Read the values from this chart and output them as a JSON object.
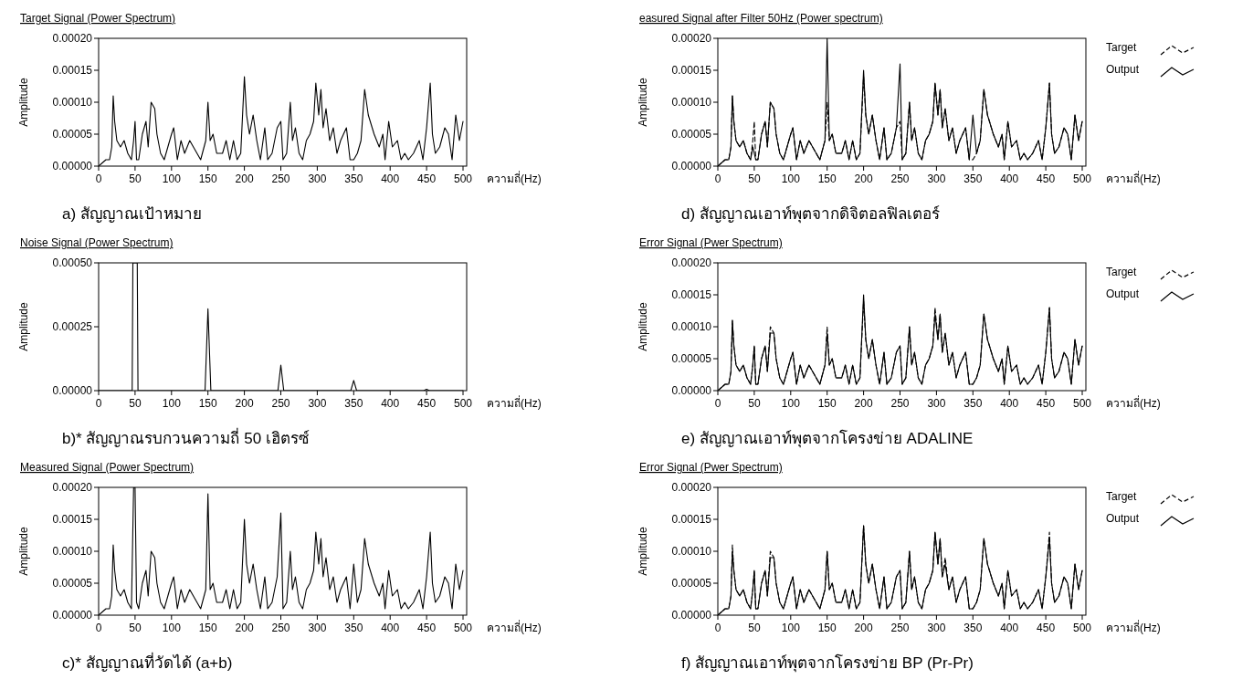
{
  "chart_data": [
    {
      "type": "line",
      "title": "Target Signal (Power Spectrum)",
      "xlabel": "ความถี่(Hz)",
      "ylabel": "Amplitude",
      "annotations": [
        "a) สัญญาณเป้าหมาย"
      ],
      "xlim": [
        0,
        505
      ],
      "xticks": [
        0,
        50,
        100,
        150,
        200,
        250,
        300,
        350,
        400,
        450,
        500
      ],
      "ylim": [
        0,
        0.0002
      ],
      "yticks": [
        {
          "value": 0,
          "label": "0.00000"
        },
        {
          "value": 5e-05,
          "label": "0.00005"
        },
        {
          "value": 0.0001,
          "label": "0.00010"
        },
        {
          "value": 0.00015,
          "label": "0.00015"
        },
        {
          "value": 0.0002,
          "label": "0.00020"
        }
      ],
      "x": [
        0,
        5,
        10,
        15,
        18,
        20,
        22,
        25,
        30,
        35,
        40,
        45,
        48,
        50,
        52,
        55,
        60,
        65,
        68,
        72,
        77,
        80,
        85,
        90,
        95,
        100,
        103,
        108,
        113,
        118,
        125,
        130,
        140,
        147,
        150,
        153,
        157,
        162,
        170,
        175,
        180,
        185,
        190,
        195,
        200,
        203,
        207,
        212,
        217,
        222,
        228,
        232,
        238,
        245,
        250,
        253,
        258,
        263,
        266,
        270,
        275,
        280,
        285,
        290,
        295,
        298,
        302,
        305,
        308,
        312,
        317,
        322,
        327,
        332,
        340,
        345,
        350,
        355,
        360,
        365,
        370,
        378,
        385,
        390,
        393,
        398,
        403,
        410,
        415,
        420,
        425,
        432,
        440,
        445,
        450,
        455,
        458,
        462,
        468,
        475,
        480,
        485,
        490,
        495,
        500
      ],
      "series": [
        {
          "color": "#000000",
          "line_style": "solid",
          "values": [
            0,
            5e-06,
            1e-05,
            1e-05,
            3e-05,
            0.00011,
            7e-05,
            4e-05,
            3e-05,
            4e-05,
            2e-05,
            1e-05,
            4e-05,
            7e-05,
            1e-05,
            1e-05,
            5e-05,
            7e-05,
            3e-05,
            0.0001,
            9e-05,
            5e-05,
            2e-05,
            1e-05,
            3e-05,
            5e-05,
            6e-05,
            1e-05,
            4e-05,
            2e-05,
            4e-05,
            3e-05,
            1e-05,
            4e-05,
            0.0001,
            4e-05,
            5e-05,
            2e-05,
            2e-05,
            4e-05,
            1e-05,
            4e-05,
            1e-05,
            2e-05,
            0.00014,
            8e-05,
            5e-05,
            8e-05,
            4e-05,
            1e-05,
            6e-05,
            1e-05,
            2e-05,
            6e-05,
            7e-05,
            1e-05,
            2e-05,
            0.0001,
            4e-05,
            6e-05,
            2e-05,
            1e-05,
            4e-05,
            5e-05,
            7e-05,
            0.00013,
            8e-05,
            0.00012,
            6e-05,
            9e-05,
            4e-05,
            6e-05,
            2e-05,
            4e-05,
            6e-05,
            1e-05,
            1e-05,
            2e-05,
            4e-05,
            0.00012,
            8e-05,
            5e-05,
            3e-05,
            5e-05,
            1e-05,
            7e-05,
            3e-05,
            4e-05,
            1e-05,
            2e-05,
            1e-05,
            2e-05,
            4e-05,
            1e-05,
            6e-05,
            0.00013,
            5e-05,
            2e-05,
            3e-05,
            6e-05,
            5e-05,
            1e-05,
            8e-05,
            4e-05,
            7e-05
          ]
        }
      ]
    },
    {
      "type": "line",
      "title": "Noise Signal (Power Spectrum)",
      "xlabel": "ความถี่(Hz)",
      "ylabel": "Amplitude",
      "annotations": [
        "b)* สัญญาณรบกวนความถี่ 50 เฮิตรซ์"
      ],
      "xlim": [
        0,
        505
      ],
      "xticks": [
        0,
        50,
        100,
        150,
        200,
        250,
        300,
        350,
        400,
        450,
        500
      ],
      "ylim": [
        0,
        0.0005
      ],
      "yticks": [
        {
          "value": 0,
          "label": "0.00000"
        },
        {
          "value": 0.00025,
          "label": "0.00025"
        },
        {
          "value": 0.0005,
          "label": "0.00050"
        }
      ],
      "x": [
        0,
        46,
        47,
        53,
        54,
        146,
        150,
        154,
        246,
        250,
        254,
        346,
        350,
        354,
        446,
        450,
        454,
        500
      ],
      "series": [
        {
          "color": "#000000",
          "line_style": "solid",
          "values": [
            0,
            0,
            0.0005,
            0.0005,
            0,
            0,
            0.00032,
            0,
            0,
            0.0001,
            0,
            0,
            4e-05,
            0,
            0,
            5e-06,
            0,
            0
          ]
        }
      ]
    },
    {
      "type": "line",
      "title": "Measured Signal (Power Spectrum)",
      "xlabel": "ความถี่(Hz)",
      "ylabel": "Amplitude",
      "annotations": [
        "c)* สัญญาณที่วัดได้ (a+b)"
      ],
      "xlim": [
        0,
        505
      ],
      "xticks": [
        0,
        50,
        100,
        150,
        200,
        250,
        300,
        350,
        400,
        450,
        500
      ],
      "ylim": [
        0,
        0.0002
      ],
      "yticks": [
        {
          "value": 0,
          "label": "0.00000"
        },
        {
          "value": 5e-05,
          "label": "0.00005"
        },
        {
          "value": 0.0001,
          "label": "0.00010"
        },
        {
          "value": 0.00015,
          "label": "0.00015"
        },
        {
          "value": 0.0002,
          "label": "0.00020"
        }
      ],
      "x": [
        0,
        5,
        10,
        15,
        18,
        20,
        22,
        25,
        30,
        35,
        40,
        45,
        48,
        50,
        52,
        55,
        60,
        65,
        68,
        72,
        77,
        80,
        85,
        90,
        95,
        100,
        103,
        108,
        113,
        118,
        125,
        130,
        140,
        147,
        150,
        153,
        157,
        162,
        170,
        175,
        180,
        185,
        190,
        195,
        200,
        203,
        207,
        212,
        217,
        222,
        228,
        232,
        238,
        245,
        250,
        253,
        258,
        263,
        266,
        270,
        275,
        280,
        285,
        290,
        295,
        298,
        302,
        305,
        308,
        312,
        317,
        322,
        327,
        332,
        340,
        345,
        350,
        355,
        360,
        365,
        370,
        378,
        385,
        390,
        393,
        398,
        403,
        410,
        415,
        420,
        425,
        432,
        440,
        445,
        450,
        455,
        458,
        462,
        468,
        475,
        480,
        485,
        490,
        495,
        500
      ],
      "series": [
        {
          "color": "#000000",
          "line_style": "solid",
          "values": [
            0,
            5e-06,
            1e-05,
            1e-05,
            3e-05,
            0.00011,
            7e-05,
            4e-05,
            3e-05,
            4e-05,
            2e-05,
            1e-05,
            0.0002,
            0.0002,
            2e-05,
            1e-05,
            5e-05,
            7e-05,
            3e-05,
            0.0001,
            9e-05,
            5e-05,
            2e-05,
            1e-05,
            3e-05,
            5e-05,
            6e-05,
            1e-05,
            4e-05,
            2e-05,
            4e-05,
            3e-05,
            1e-05,
            4e-05,
            0.00019,
            4e-05,
            5e-05,
            2e-05,
            2e-05,
            4e-05,
            1e-05,
            4e-05,
            1e-05,
            2e-05,
            0.00015,
            8e-05,
            5e-05,
            8e-05,
            4e-05,
            1e-05,
            6e-05,
            1e-05,
            2e-05,
            6e-05,
            0.00016,
            1e-05,
            2e-05,
            0.0001,
            4e-05,
            6e-05,
            2e-05,
            1e-05,
            4e-05,
            5e-05,
            7e-05,
            0.00013,
            8e-05,
            0.00012,
            6e-05,
            9e-05,
            4e-05,
            6e-05,
            2e-05,
            4e-05,
            6e-05,
            1e-05,
            8e-05,
            2e-05,
            4e-05,
            0.00012,
            8e-05,
            5e-05,
            3e-05,
            5e-05,
            1e-05,
            7e-05,
            3e-05,
            4e-05,
            1e-05,
            2e-05,
            1e-05,
            2e-05,
            4e-05,
            1e-05,
            6e-05,
            0.00013,
            5e-05,
            2e-05,
            3e-05,
            6e-05,
            5e-05,
            1e-05,
            8e-05,
            4e-05,
            7e-05
          ]
        }
      ]
    },
    {
      "type": "line",
      "title": "easured Signal after Filter 50Hz (Power spectrum)",
      "xlabel": "ความถี่(Hz)",
      "ylabel": "Amplitude",
      "annotations": [
        "d) สัญญาณเอาท์พุตจากดิจิตอลฟิลเตอร์"
      ],
      "legend": "right",
      "xlim": [
        0,
        505
      ],
      "xticks": [
        0,
        50,
        100,
        150,
        200,
        250,
        300,
        350,
        400,
        450,
        500
      ],
      "ylim": [
        0,
        0.0002
      ],
      "yticks": [
        {
          "value": 0,
          "label": "0.00000"
        },
        {
          "value": 5e-05,
          "label": "0.00005"
        },
        {
          "value": 0.0001,
          "label": "0.00010"
        },
        {
          "value": 0.00015,
          "label": "0.00015"
        },
        {
          "value": 0.0002,
          "label": "0.00020"
        }
      ],
      "x": [
        0,
        5,
        10,
        15,
        18,
        20,
        22,
        25,
        30,
        35,
        40,
        45,
        48,
        50,
        52,
        55,
        60,
        65,
        68,
        72,
        77,
        80,
        85,
        90,
        95,
        100,
        103,
        108,
        113,
        118,
        125,
        130,
        140,
        147,
        150,
        153,
        157,
        162,
        170,
        175,
        180,
        185,
        190,
        195,
        200,
        203,
        207,
        212,
        217,
        222,
        228,
        232,
        238,
        245,
        250,
        253,
        258,
        263,
        266,
        270,
        275,
        280,
        285,
        290,
        295,
        298,
        302,
        305,
        308,
        312,
        317,
        322,
        327,
        332,
        340,
        345,
        350,
        355,
        360,
        365,
        370,
        378,
        385,
        390,
        393,
        398,
        403,
        410,
        415,
        420,
        425,
        432,
        440,
        445,
        450,
        455,
        458,
        462,
        468,
        475,
        480,
        485,
        490,
        495,
        500
      ],
      "series": [
        {
          "name": "Target",
          "color": "#000000",
          "line_style": "dashed",
          "values": [
            0,
            5e-06,
            1e-05,
            1e-05,
            3e-05,
            0.00011,
            7e-05,
            4e-05,
            3e-05,
            4e-05,
            2e-05,
            1e-05,
            4e-05,
            7e-05,
            1e-05,
            1e-05,
            5e-05,
            7e-05,
            3e-05,
            0.0001,
            9e-05,
            5e-05,
            2e-05,
            1e-05,
            3e-05,
            5e-05,
            6e-05,
            1e-05,
            4e-05,
            2e-05,
            4e-05,
            3e-05,
            1e-05,
            4e-05,
            0.0001,
            4e-05,
            5e-05,
            2e-05,
            2e-05,
            4e-05,
            1e-05,
            4e-05,
            1e-05,
            2e-05,
            0.00014,
            8e-05,
            5e-05,
            8e-05,
            4e-05,
            1e-05,
            6e-05,
            1e-05,
            2e-05,
            6e-05,
            7e-05,
            1e-05,
            2e-05,
            0.0001,
            4e-05,
            6e-05,
            2e-05,
            1e-05,
            4e-05,
            5e-05,
            7e-05,
            0.00013,
            8e-05,
            0.00012,
            6e-05,
            9e-05,
            4e-05,
            6e-05,
            2e-05,
            4e-05,
            6e-05,
            1e-05,
            1e-05,
            2e-05,
            4e-05,
            0.00012,
            8e-05,
            5e-05,
            3e-05,
            5e-05,
            1e-05,
            7e-05,
            3e-05,
            4e-05,
            1e-05,
            2e-05,
            1e-05,
            2e-05,
            4e-05,
            1e-05,
            6e-05,
            0.00013,
            5e-05,
            2e-05,
            3e-05,
            6e-05,
            5e-05,
            1e-05,
            8e-05,
            4e-05,
            7e-05
          ]
        },
        {
          "name": "Output",
          "color": "#000000",
          "line_style": "solid",
          "values": [
            0,
            5e-06,
            1e-05,
            1e-05,
            3e-05,
            0.00011,
            7e-05,
            4e-05,
            3e-05,
            4e-05,
            2e-05,
            1e-05,
            3e-05,
            2e-05,
            1e-05,
            1e-05,
            5e-05,
            7e-05,
            3e-05,
            0.0001,
            9e-05,
            5e-05,
            2e-05,
            1e-05,
            3e-05,
            5e-05,
            6e-05,
            1e-05,
            4e-05,
            2e-05,
            4e-05,
            3e-05,
            1e-05,
            4e-05,
            0.0002,
            4e-05,
            5e-05,
            2e-05,
            2e-05,
            4e-05,
            1e-05,
            4e-05,
            1e-05,
            2e-05,
            0.00015,
            8e-05,
            5e-05,
            8e-05,
            4e-05,
            1e-05,
            6e-05,
            1e-05,
            2e-05,
            6e-05,
            0.00016,
            1e-05,
            2e-05,
            0.0001,
            4e-05,
            6e-05,
            2e-05,
            1e-05,
            4e-05,
            5e-05,
            7e-05,
            0.00013,
            8e-05,
            0.00012,
            6e-05,
            9e-05,
            4e-05,
            6e-05,
            2e-05,
            4e-05,
            6e-05,
            1e-05,
            8e-05,
            2e-05,
            4e-05,
            0.00012,
            8e-05,
            5e-05,
            3e-05,
            5e-05,
            1e-05,
            7e-05,
            3e-05,
            4e-05,
            1e-05,
            2e-05,
            1e-05,
            2e-05,
            4e-05,
            1e-05,
            6e-05,
            0.00013,
            5e-05,
            2e-05,
            3e-05,
            6e-05,
            5e-05,
            1e-05,
            8e-05,
            4e-05,
            7e-05
          ]
        }
      ]
    },
    {
      "type": "line",
      "title": "Error Signal (Pwer Spectrum)",
      "xlabel": "ความถี่(Hz)",
      "ylabel": "Amplitude",
      "annotations": [
        "e) สัญญาณเอาท์พุตจากโครงข่าย ADALINE"
      ],
      "legend": "right",
      "xlim": [
        0,
        505
      ],
      "xticks": [
        0,
        50,
        100,
        150,
        200,
        250,
        300,
        350,
        400,
        450,
        500
      ],
      "ylim": [
        0,
        0.0002
      ],
      "yticks": [
        {
          "value": 0,
          "label": "0.00000"
        },
        {
          "value": 5e-05,
          "label": "0.00005"
        },
        {
          "value": 0.0001,
          "label": "0.00010"
        },
        {
          "value": 0.00015,
          "label": "0.00015"
        },
        {
          "value": 0.0002,
          "label": "0.00020"
        }
      ],
      "x": [
        0,
        5,
        10,
        15,
        18,
        20,
        22,
        25,
        30,
        35,
        40,
        45,
        48,
        50,
        52,
        55,
        60,
        65,
        68,
        72,
        77,
        80,
        85,
        90,
        95,
        100,
        103,
        108,
        113,
        118,
        125,
        130,
        140,
        147,
        150,
        153,
        157,
        162,
        170,
        175,
        180,
        185,
        190,
        195,
        200,
        203,
        207,
        212,
        217,
        222,
        228,
        232,
        238,
        245,
        250,
        253,
        258,
        263,
        266,
        270,
        275,
        280,
        285,
        290,
        295,
        298,
        302,
        305,
        308,
        312,
        317,
        322,
        327,
        332,
        340,
        345,
        350,
        355,
        360,
        365,
        370,
        378,
        385,
        390,
        393,
        398,
        403,
        410,
        415,
        420,
        425,
        432,
        440,
        445,
        450,
        455,
        458,
        462,
        468,
        475,
        480,
        485,
        490,
        495,
        500
      ],
      "series": [
        {
          "name": "Target",
          "color": "#000000",
          "line_style": "dashed",
          "values": [
            0,
            5e-06,
            1e-05,
            1e-05,
            3e-05,
            0.00011,
            7e-05,
            4e-05,
            3e-05,
            4e-05,
            2e-05,
            1e-05,
            4e-05,
            7e-05,
            1e-05,
            1e-05,
            5e-05,
            7e-05,
            3e-05,
            0.0001,
            9e-05,
            5e-05,
            2e-05,
            1e-05,
            3e-05,
            5e-05,
            6e-05,
            1e-05,
            4e-05,
            2e-05,
            4e-05,
            3e-05,
            1e-05,
            4e-05,
            0.0001,
            4e-05,
            5e-05,
            2e-05,
            2e-05,
            4e-05,
            1e-05,
            4e-05,
            1e-05,
            2e-05,
            0.00014,
            8e-05,
            5e-05,
            8e-05,
            4e-05,
            1e-05,
            6e-05,
            1e-05,
            2e-05,
            6e-05,
            7e-05,
            1e-05,
            2e-05,
            0.0001,
            4e-05,
            6e-05,
            2e-05,
            1e-05,
            4e-05,
            5e-05,
            7e-05,
            0.00013,
            8e-05,
            0.00012,
            6e-05,
            9e-05,
            4e-05,
            6e-05,
            2e-05,
            4e-05,
            6e-05,
            1e-05,
            1e-05,
            2e-05,
            4e-05,
            0.00012,
            8e-05,
            5e-05,
            3e-05,
            5e-05,
            1e-05,
            7e-05,
            3e-05,
            4e-05,
            1e-05,
            2e-05,
            1e-05,
            2e-05,
            4e-05,
            1e-05,
            6e-05,
            0.00013,
            5e-05,
            2e-05,
            3e-05,
            6e-05,
            5e-05,
            1e-05,
            8e-05,
            4e-05,
            7e-05
          ]
        },
        {
          "name": "Output",
          "color": "#000000",
          "line_style": "solid",
          "values": [
            0,
            5e-06,
            1e-05,
            1e-05,
            3e-05,
            0.00011,
            7e-05,
            4e-05,
            3e-05,
            4e-05,
            2e-05,
            1e-05,
            4e-05,
            7e-05,
            1e-05,
            1e-05,
            5e-05,
            7e-05,
            3e-05,
            9e-05,
            9e-05,
            5e-05,
            2e-05,
            1e-05,
            3e-05,
            5e-05,
            6e-05,
            1e-05,
            4e-05,
            2e-05,
            4e-05,
            3e-05,
            1e-05,
            4e-05,
            9e-05,
            4e-05,
            5e-05,
            2e-05,
            2e-05,
            4e-05,
            1e-05,
            4e-05,
            1e-05,
            2e-05,
            0.00015,
            8e-05,
            5e-05,
            8e-05,
            4e-05,
            1e-05,
            6e-05,
            1e-05,
            2e-05,
            6e-05,
            7e-05,
            1e-05,
            2e-05,
            0.0001,
            4e-05,
            6e-05,
            2e-05,
            1e-05,
            4e-05,
            5e-05,
            7e-05,
            0.00012,
            8e-05,
            0.00012,
            6e-05,
            9e-05,
            4e-05,
            6e-05,
            2e-05,
            4e-05,
            6e-05,
            1e-05,
            1e-05,
            2e-05,
            4e-05,
            0.00012,
            8e-05,
            5e-05,
            3e-05,
            5e-05,
            1e-05,
            7e-05,
            3e-05,
            4e-05,
            1e-05,
            2e-05,
            1e-05,
            2e-05,
            4e-05,
            1e-05,
            6e-05,
            0.00013,
            5e-05,
            2e-05,
            3e-05,
            6e-05,
            5e-05,
            1e-05,
            8e-05,
            4e-05,
            7e-05
          ]
        }
      ]
    },
    {
      "type": "line",
      "title": "Error Signal (Pwer Spectrum)",
      "xlabel": "ความถี่(Hz)",
      "ylabel": "Amplitude",
      "annotations": [
        "f) สัญญาณเอาท์พุตจากโครงข่าย BP (Pr-Pr)"
      ],
      "legend": "right",
      "xlim": [
        0,
        505
      ],
      "xticks": [
        0,
        50,
        100,
        150,
        200,
        250,
        300,
        350,
        400,
        450,
        500
      ],
      "ylim": [
        0,
        0.0002
      ],
      "yticks": [
        {
          "value": 0,
          "label": "0.00000"
        },
        {
          "value": 5e-05,
          "label": "0.00005"
        },
        {
          "value": 0.0001,
          "label": "0.00010"
        },
        {
          "value": 0.00015,
          "label": "0.00015"
        },
        {
          "value": 0.0002,
          "label": "0.00020"
        }
      ],
      "x": [
        0,
        5,
        10,
        15,
        18,
        20,
        22,
        25,
        30,
        35,
        40,
        45,
        48,
        50,
        52,
        55,
        60,
        65,
        68,
        72,
        77,
        80,
        85,
        90,
        95,
        100,
        103,
        108,
        113,
        118,
        125,
        130,
        140,
        147,
        150,
        153,
        157,
        162,
        170,
        175,
        180,
        185,
        190,
        195,
        200,
        203,
        207,
        212,
        217,
        222,
        228,
        232,
        238,
        245,
        250,
        253,
        258,
        263,
        266,
        270,
        275,
        280,
        285,
        290,
        295,
        298,
        302,
        305,
        308,
        312,
        317,
        322,
        327,
        332,
        340,
        345,
        350,
        355,
        360,
        365,
        370,
        378,
        385,
        390,
        393,
        398,
        403,
        410,
        415,
        420,
        425,
        432,
        440,
        445,
        450,
        455,
        458,
        462,
        468,
        475,
        480,
        485,
        490,
        495,
        500
      ],
      "series": [
        {
          "name": "Target",
          "color": "#000000",
          "line_style": "dashed",
          "values": [
            0,
            5e-06,
            1e-05,
            1e-05,
            3e-05,
            0.00011,
            7e-05,
            4e-05,
            3e-05,
            4e-05,
            2e-05,
            1e-05,
            4e-05,
            7e-05,
            1e-05,
            1e-05,
            5e-05,
            7e-05,
            3e-05,
            0.0001,
            9e-05,
            5e-05,
            2e-05,
            1e-05,
            3e-05,
            5e-05,
            6e-05,
            1e-05,
            4e-05,
            2e-05,
            4e-05,
            3e-05,
            1e-05,
            4e-05,
            0.0001,
            4e-05,
            5e-05,
            2e-05,
            2e-05,
            4e-05,
            1e-05,
            4e-05,
            1e-05,
            2e-05,
            0.00014,
            8e-05,
            5e-05,
            8e-05,
            4e-05,
            1e-05,
            6e-05,
            1e-05,
            2e-05,
            6e-05,
            7e-05,
            1e-05,
            2e-05,
            0.0001,
            4e-05,
            6e-05,
            2e-05,
            1e-05,
            4e-05,
            5e-05,
            7e-05,
            0.00013,
            8e-05,
            0.00012,
            6e-05,
            9e-05,
            4e-05,
            6e-05,
            2e-05,
            4e-05,
            6e-05,
            1e-05,
            1e-05,
            2e-05,
            4e-05,
            0.00012,
            8e-05,
            5e-05,
            3e-05,
            5e-05,
            1e-05,
            7e-05,
            3e-05,
            4e-05,
            1e-05,
            2e-05,
            1e-05,
            2e-05,
            4e-05,
            1e-05,
            6e-05,
            0.00013,
            5e-05,
            2e-05,
            3e-05,
            6e-05,
            5e-05,
            1e-05,
            8e-05,
            4e-05,
            7e-05
          ]
        },
        {
          "name": "Output",
          "color": "#000000",
          "line_style": "solid",
          "values": [
            0,
            5e-06,
            1e-05,
            1e-05,
            3e-05,
            0.0001,
            7e-05,
            4e-05,
            3e-05,
            4e-05,
            2e-05,
            1e-05,
            4e-05,
            7e-05,
            1e-05,
            1e-05,
            5e-05,
            7e-05,
            3e-05,
            9e-05,
            9e-05,
            5e-05,
            2e-05,
            1e-05,
            3e-05,
            5e-05,
            6e-05,
            1e-05,
            4e-05,
            2e-05,
            4e-05,
            3e-05,
            1e-05,
            4e-05,
            0.0001,
            4e-05,
            5e-05,
            2e-05,
            2e-05,
            4e-05,
            1e-05,
            4e-05,
            1e-05,
            2e-05,
            0.00014,
            8e-05,
            5e-05,
            8e-05,
            4e-05,
            1e-05,
            6e-05,
            1e-05,
            2e-05,
            6e-05,
            7e-05,
            1e-05,
            2e-05,
            0.0001,
            4e-05,
            6e-05,
            2e-05,
            1e-05,
            4e-05,
            5e-05,
            7e-05,
            0.00013,
            8e-05,
            0.00012,
            6e-05,
            8e-05,
            4e-05,
            6e-05,
            2e-05,
            4e-05,
            6e-05,
            1e-05,
            1e-05,
            2e-05,
            4e-05,
            0.00012,
            8e-05,
            5e-05,
            3e-05,
            5e-05,
            1e-05,
            7e-05,
            3e-05,
            4e-05,
            1e-05,
            2e-05,
            1e-05,
            2e-05,
            4e-05,
            1e-05,
            6e-05,
            0.00012,
            5e-05,
            2e-05,
            3e-05,
            6e-05,
            5e-05,
            1e-05,
            8e-05,
            4e-05,
            7e-05
          ]
        }
      ]
    }
  ]
}
